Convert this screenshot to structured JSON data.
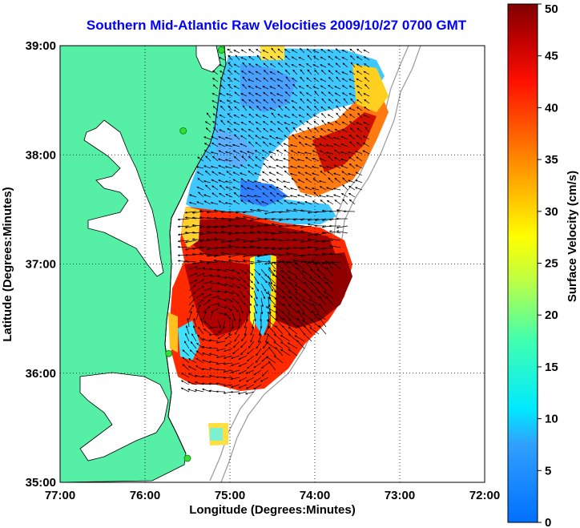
{
  "title": "Southern Mid-Atlantic Raw Velocities 2009/10/27 0700 GMT",
  "x_axis": {
    "label": "Longitude (Degrees:Minutes)",
    "ticks": [
      "77:00",
      "76:00",
      "75:00",
      "74:00",
      "73:00",
      "72:00"
    ],
    "range": [
      -77,
      -72
    ]
  },
  "y_axis": {
    "label": "Latitude (Degrees:Minutes)",
    "ticks": [
      "35:00",
      "36:00",
      "37:00",
      "38:00",
      "39:00"
    ],
    "range": [
      35,
      39
    ]
  },
  "colorbar": {
    "label": "Surface Velocity (cm/s)",
    "ticks": [
      "0",
      "5",
      "10",
      "15",
      "20",
      "25",
      "30",
      "35",
      "40",
      "45",
      "50"
    ],
    "range": [
      0,
      50
    ]
  },
  "grid": "dotted",
  "colors": {
    "land": "#55f0a6",
    "title": "#0000ff",
    "stations": "#33dd33",
    "bathymetry": "#999999"
  },
  "stations": [
    {
      "lon": -75.1,
      "lat": 38.96
    },
    {
      "lon": -75.55,
      "lat": 38.22
    },
    {
      "lon": -75.72,
      "lat": 36.18
    },
    {
      "lon": -75.5,
      "lat": 35.22
    }
  ]
}
